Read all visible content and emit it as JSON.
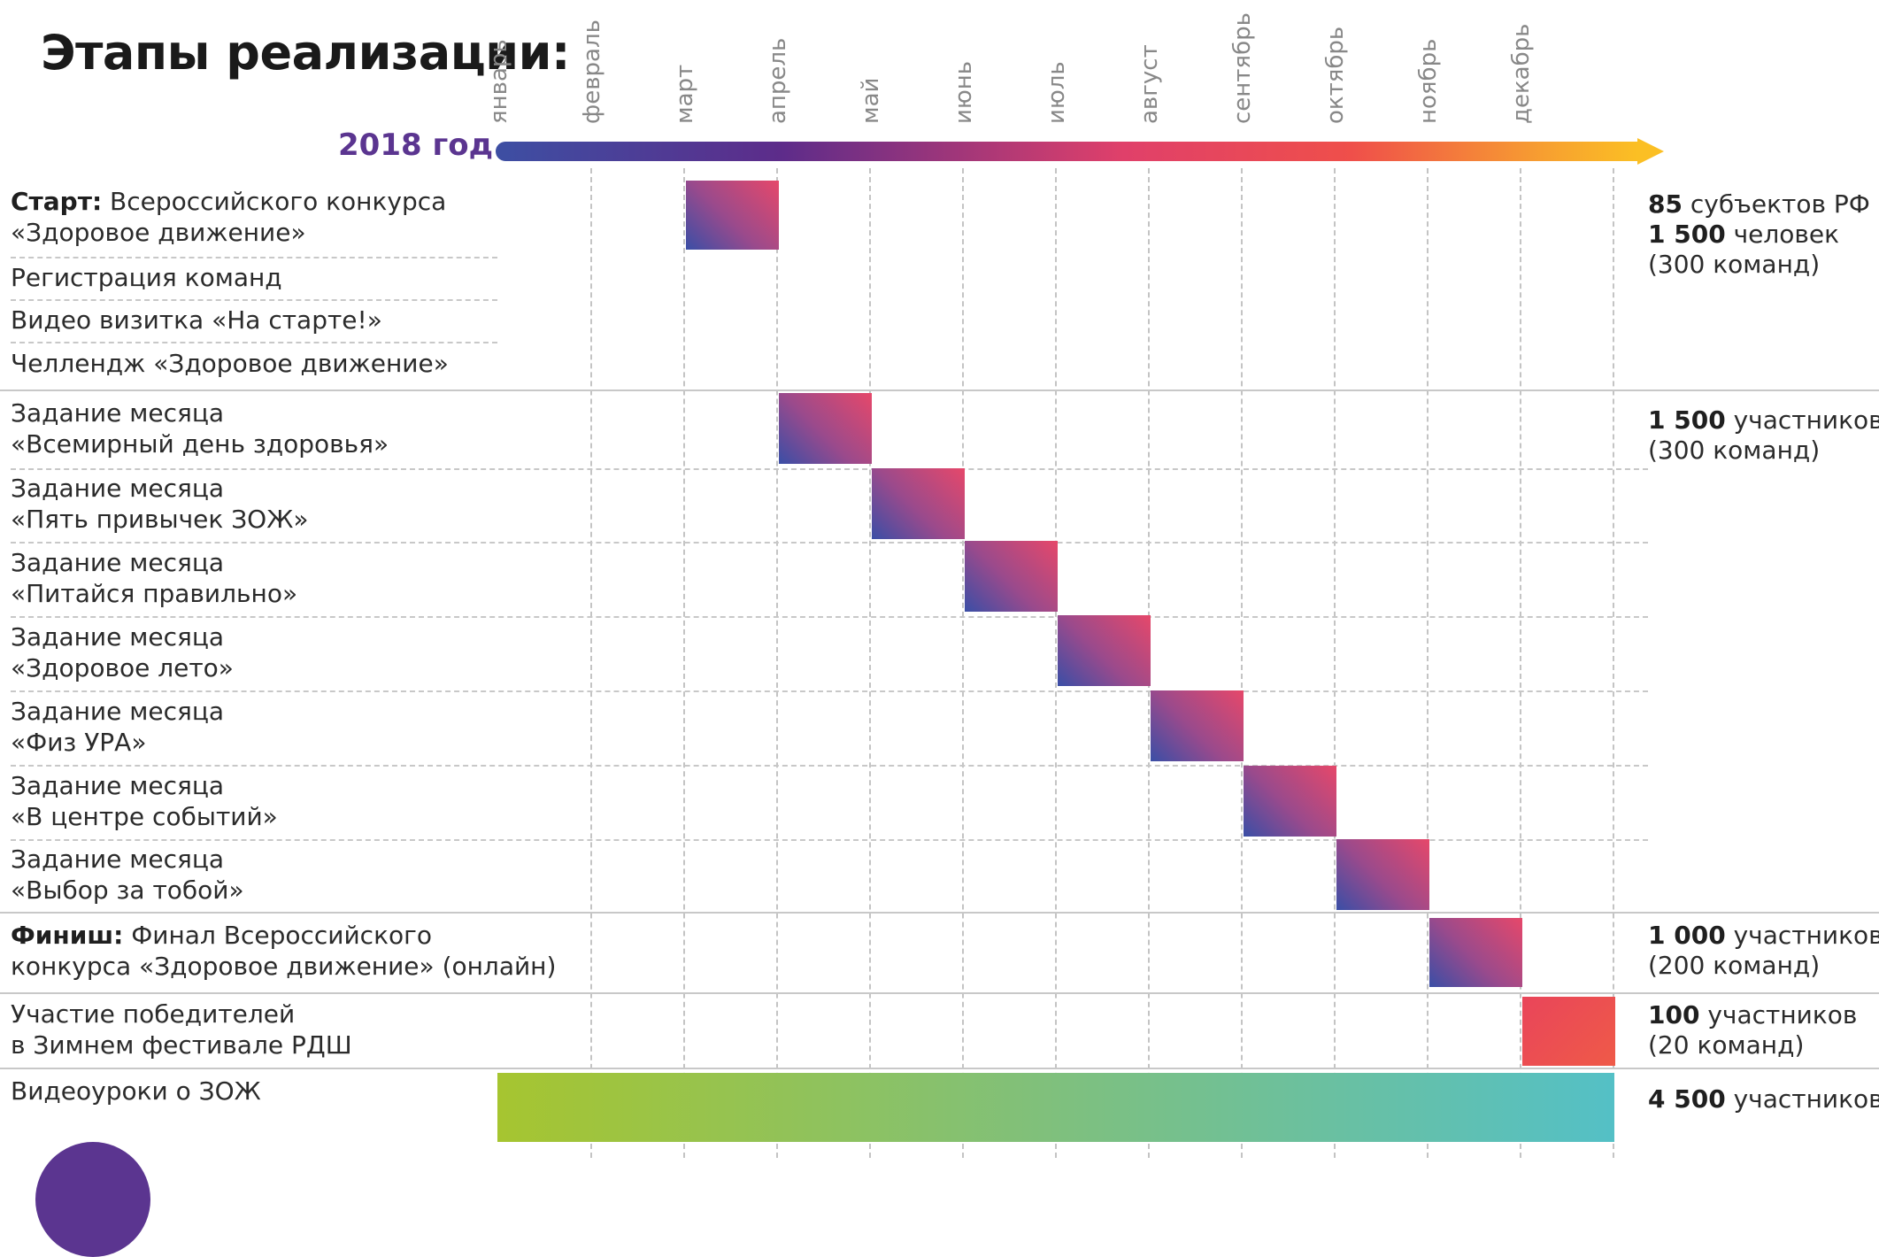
{
  "title": "Этапы реализации:",
  "year_label": "2018 год",
  "months": [
    "январь",
    "февраль",
    "март",
    "апрель",
    "май",
    "июнь",
    "июль",
    "август",
    "сентябрь",
    "октябрь",
    "ноябрь",
    "декабрь"
  ],
  "colors": {
    "title": "#1a1a1a",
    "year": "#5b3590",
    "bar_gradient": [
      "#3a4ea6",
      "#9a4a8c",
      "#e6486a"
    ],
    "winter_bar": "#ec4f52",
    "video_bar": [
      "#a6c530",
      "#54c0c6"
    ],
    "timeline_arrow": [
      "#3d4fa3",
      "#5d2c8a",
      "#e0406a",
      "#ef4f4a",
      "#fbbf24"
    ]
  },
  "tasks": [
    {
      "bold": "Старт:",
      "text": " Всероссийского конкурса",
      "line2": "«Здоровое движение»",
      "start_month": 3,
      "end_month": 3,
      "style": "grad"
    },
    {
      "bold": "",
      "text": "Регистрация команд",
      "line2": ""
    },
    {
      "bold": "",
      "text": "Видео визитка «На старте!»",
      "line2": ""
    },
    {
      "bold": "",
      "text": "Челлендж «Здоровое движение»",
      "line2": ""
    },
    {
      "bold": "",
      "text": "Задание месяца",
      "line2": "«Всемирный день здоровья»",
      "start_month": 4,
      "end_month": 4,
      "style": "grad"
    },
    {
      "bold": "",
      "text": "Задание месяца",
      "line2": "«Пять привычек ЗОЖ»",
      "start_month": 5,
      "end_month": 5,
      "style": "grad"
    },
    {
      "bold": "",
      "text": "Задание месяца",
      "line2": "«Питайся правильно»",
      "start_month": 6,
      "end_month": 6,
      "style": "grad"
    },
    {
      "bold": "",
      "text": "Задание месяца",
      "line2": "«Здоровое лето»",
      "start_month": 7,
      "end_month": 7,
      "style": "grad"
    },
    {
      "bold": "",
      "text": "Задание месяца",
      "line2": "«Физ УРА»",
      "start_month": 8,
      "end_month": 8,
      "style": "grad"
    },
    {
      "bold": "",
      "text": "Задание месяца",
      "line2": "«В центре событий»",
      "start_month": 9,
      "end_month": 9,
      "style": "grad"
    },
    {
      "bold": "",
      "text": "Задание месяца",
      "line2": "«Выбор за тобой»",
      "start_month": 10,
      "end_month": 10,
      "style": "grad"
    },
    {
      "bold": "Финиш:",
      "text": " Финал Всероссийского",
      "line2": "конкурса «Здоровое движение» (онлайн)",
      "start_month": 11,
      "end_month": 11,
      "style": "grad"
    },
    {
      "bold": "",
      "text": "Участие победителей",
      "line2": "в Зимнем фестивале РДШ",
      "start_month": 12,
      "end_month": 12,
      "style": "red"
    },
    {
      "bold": "",
      "text": "Видеоуроки о ЗОЖ",
      "line2": "",
      "start_month": 1,
      "end_month": 12,
      "style": "green"
    }
  ],
  "stats": [
    {
      "lines": [
        {
          "bold": "85",
          "text": " субъектов РФ"
        },
        {
          "bold": "1 500",
          "text": " человек"
        },
        {
          "bold": "",
          "text": "(300 команд)"
        }
      ]
    },
    {
      "lines": [
        {
          "bold": "1 500",
          "text": " участников"
        },
        {
          "bold": "",
          "text": "(300 команд)"
        }
      ]
    },
    {
      "lines": [
        {
          "bold": "1 000",
          "text": " участников"
        },
        {
          "bold": "",
          "text": "(200 команд)"
        }
      ]
    },
    {
      "lines": [
        {
          "bold": "100",
          "text": " участников"
        },
        {
          "bold": "",
          "text": "(20 команд)"
        }
      ]
    },
    {
      "lines": [
        {
          "bold": "4 500",
          "text": " участников"
        }
      ]
    }
  ]
}
